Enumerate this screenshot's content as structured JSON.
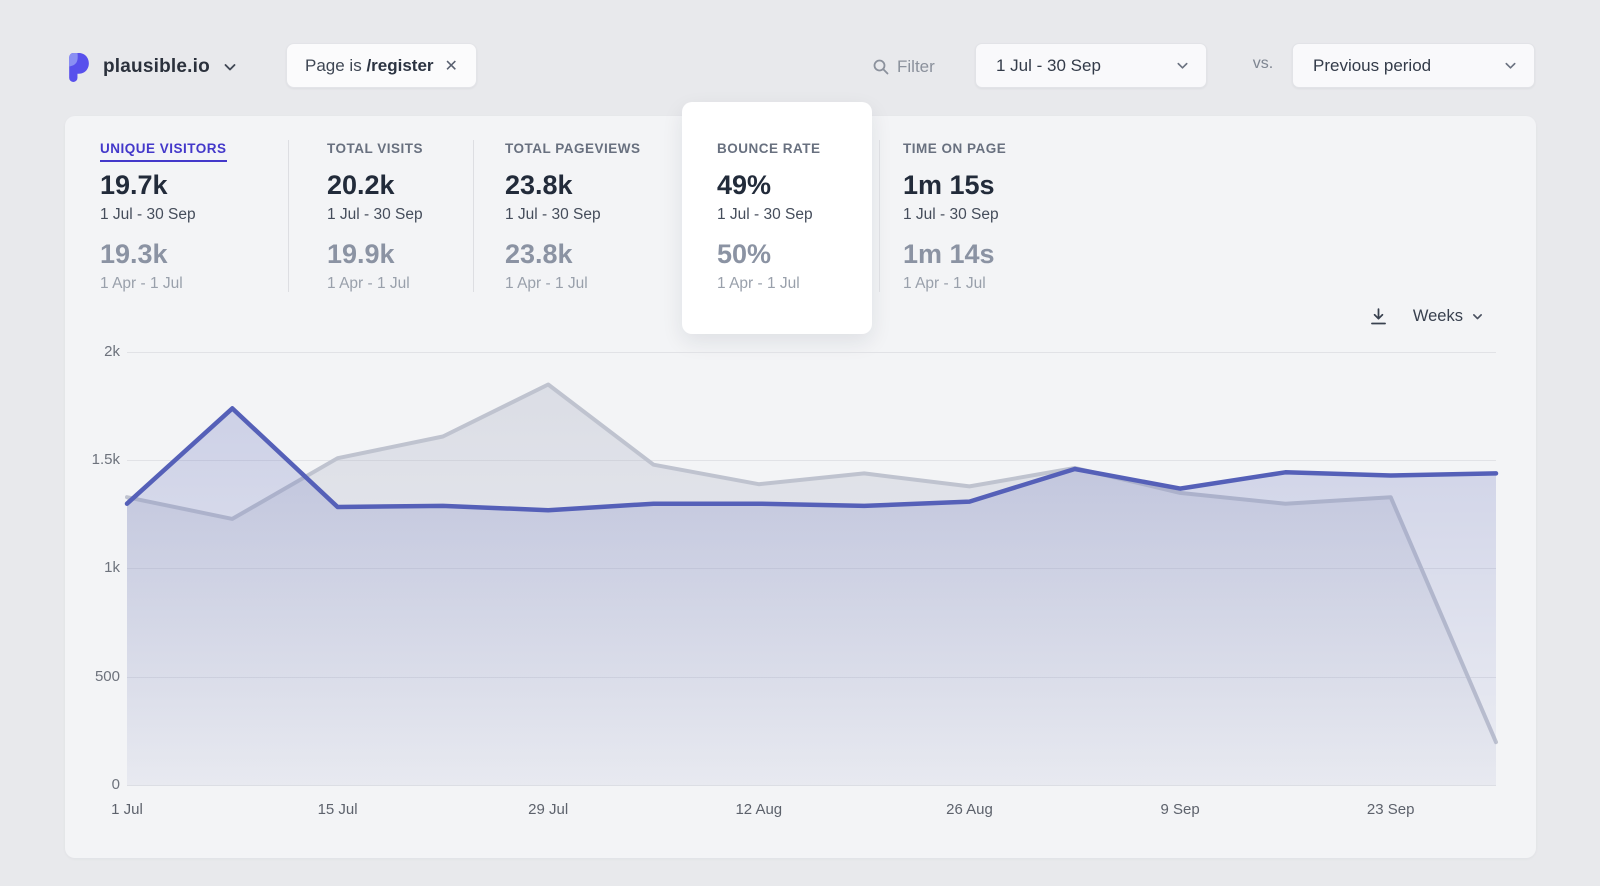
{
  "header": {
    "site_name": "plausible.io",
    "filter_chip": {
      "prefix": "Page is",
      "value": "/register"
    },
    "filter_label": "Filter",
    "date_range": "1 Jul - 30 Sep",
    "vs_label": "vs.",
    "comparison": "Previous period"
  },
  "metrics": {
    "items": [
      {
        "label": "UNIQUE VISITORS",
        "value": "19.7k",
        "period": "1 Jul - 30 Sep",
        "prev_value": "19.3k",
        "prev_period": "1 Apr - 1 Jul",
        "selected": true,
        "highlighted": false
      },
      {
        "label": "TOTAL VISITS",
        "value": "20.2k",
        "period": "1 Jul - 30 Sep",
        "prev_value": "19.9k",
        "prev_period": "1 Apr - 1 Jul",
        "selected": false,
        "highlighted": false
      },
      {
        "label": "TOTAL PAGEVIEWS",
        "value": "23.8k",
        "period": "1 Jul - 30 Sep",
        "prev_value": "23.8k",
        "prev_period": "1 Apr - 1 Jul",
        "selected": false,
        "highlighted": false
      },
      {
        "label": "BOUNCE RATE",
        "value": "49%",
        "period": "1 Jul - 30 Sep",
        "prev_value": "50%",
        "prev_period": "1 Apr - 1 Jul",
        "selected": false,
        "highlighted": true
      },
      {
        "label": "TIME ON PAGE",
        "value": "1m 15s",
        "period": "1 Jul - 30 Sep",
        "prev_value": "1m 14s",
        "prev_period": "1 Apr - 1 Jul",
        "selected": false,
        "highlighted": false
      }
    ]
  },
  "chart_controls": {
    "interval_label": "Weeks",
    "download_icon": "download-icon"
  },
  "chart_data": {
    "type": "area",
    "title": "Unique visitors by week",
    "x": [
      "1 Jul",
      "8 Jul",
      "15 Jul",
      "22 Jul",
      "29 Jul",
      "5 Aug",
      "12 Aug",
      "19 Aug",
      "26 Aug",
      "2 Sep",
      "9 Sep",
      "16 Sep",
      "23 Sep",
      "30 Sep"
    ],
    "x_tick_step": 2,
    "y_ticks": [
      [
        0,
        "0"
      ],
      [
        500,
        "500"
      ],
      [
        1000,
        "1k"
      ],
      [
        1500,
        "1.5k"
      ],
      [
        2000,
        "2k"
      ]
    ],
    "ylim": [
      0,
      2000
    ],
    "grid": true,
    "legend": "none",
    "series": [
      {
        "name": "1 Jul - 30 Sep (unique visitors)",
        "color": "#5560b8",
        "fill_top": "rgba(106,117,190,0.28)",
        "fill_bottom": "rgba(106,117,190,0.05)",
        "stroke_width": 4.5,
        "values": [
          1300,
          1740,
          1285,
          1290,
          1270,
          1300,
          1300,
          1290,
          1310,
          1460,
          1370,
          1445,
          1430,
          1440
        ]
      },
      {
        "name": "1 Apr - 1 Jul (previous period)",
        "color": "#bfc3cf",
        "fill_top": "rgba(168,173,194,0.32)",
        "fill_bottom": "rgba(168,173,194,0.06)",
        "stroke_width": 4,
        "values": [
          1330,
          1230,
          1510,
          1610,
          1850,
          1480,
          1390,
          1440,
          1380,
          1465,
          1350,
          1300,
          1330,
          200
        ]
      }
    ]
  },
  "colors": {
    "accent_indigo": "#4338ca",
    "logo_indigo": "#5850ec",
    "page_bg": "#e8e9ec",
    "panel_bg": "#f3f4f6",
    "card_bg": "#ffffff",
    "gridline": "#e1e2e6"
  }
}
